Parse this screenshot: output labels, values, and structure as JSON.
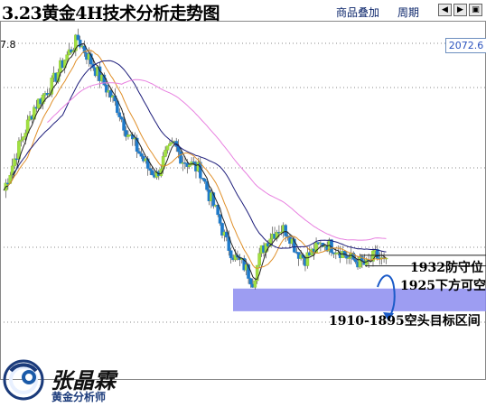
{
  "header": {
    "title": "3.23黄金4H技术分析走势图",
    "overlay_label": "商品叠加",
    "period_label": "周期",
    "nav_icons": [
      "arrow-left-icon",
      "arrow-right-icon",
      "expand-icon"
    ]
  },
  "price_box": {
    "value": "2072.6"
  },
  "top_tick_label": "7.8",
  "chart_data": {
    "type": "candlestick",
    "title": "3.23黄金4H技术分析走势图",
    "price_range": [
      1880,
      2080
    ],
    "grid": "horizontal-dotted",
    "colors": {
      "up": "#a0e040",
      "down": "#1f7ac9",
      "wick": "#333333",
      "ma_fast": "#222222",
      "ma_orange": "#e0902a",
      "ma_navy": "#1c1c7a",
      "ma_pink": "#e880e0"
    },
    "annotations": [
      {
        "text": "1932防守位",
        "level": 1932
      },
      {
        "text": "1925下方可空",
        "level": 1925
      },
      {
        "text": "1910-1895空头目标区间",
        "range": [
          1895,
          1910
        ]
      }
    ]
  },
  "brand": {
    "name": "张晶霖",
    "subtitle": "黄金分析师",
    "logo_icon": "brand-logo-icon"
  }
}
